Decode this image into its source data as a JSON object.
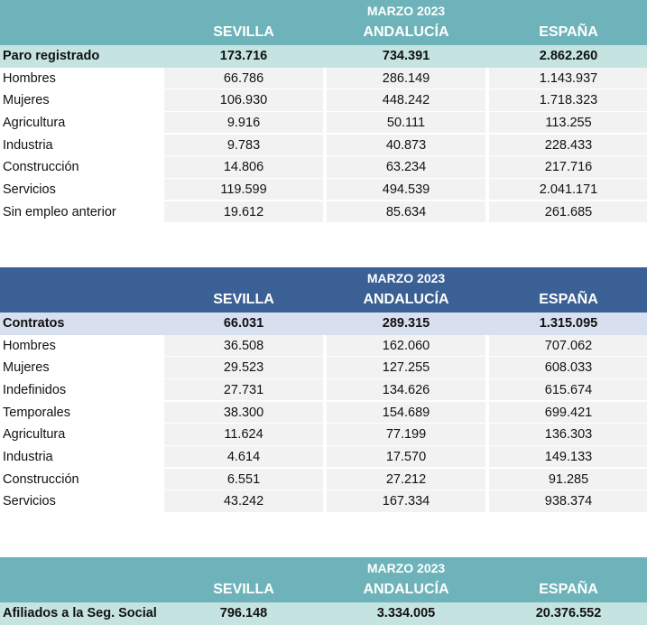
{
  "tables": [
    {
      "period": "MARZO 2023",
      "columns": [
        "SEVILLA",
        "ANDALUCÍA",
        "ESPAÑA"
      ],
      "total": {
        "label": "Paro registrado",
        "values": [
          "173.716",
          "734.391",
          "2.862.260"
        ]
      },
      "rows": [
        {
          "label": "Hombres",
          "values": [
            "66.786",
            "286.149",
            "1.143.937"
          ]
        },
        {
          "label": "Mujeres",
          "values": [
            "106.930",
            "448.242",
            "1.718.323"
          ]
        },
        {
          "label": "Agricultura",
          "values": [
            "9.916",
            "50.111",
            "113.255"
          ]
        },
        {
          "label": "Industria",
          "values": [
            "9.783",
            "40.873",
            "228.433"
          ]
        },
        {
          "label": "Construcción",
          "values": [
            "14.806",
            "63.234",
            "217.716"
          ]
        },
        {
          "label": "Servicios",
          "values": [
            "119.599",
            "494.539",
            "2.041.171"
          ]
        },
        {
          "label": "Sin empleo anterior",
          "values": [
            "19.612",
            "85.634",
            "261.685"
          ]
        }
      ]
    },
    {
      "period": "MARZO 2023",
      "columns": [
        "SEVILLA",
        "ANDALUCÍA",
        "ESPAÑA"
      ],
      "total": {
        "label": "Contratos",
        "values": [
          "66.031",
          "289.315",
          "1.315.095"
        ]
      },
      "rows": [
        {
          "label": "Hombres",
          "values": [
            "36.508",
            "162.060",
            "707.062"
          ]
        },
        {
          "label": "Mujeres",
          "values": [
            "29.523",
            "127.255",
            "608.033"
          ]
        },
        {
          "label": "Indefinidos",
          "values": [
            "27.731",
            "134.626",
            "615.674"
          ]
        },
        {
          "label": "Temporales",
          "values": [
            "38.300",
            "154.689",
            "699.421"
          ]
        },
        {
          "label": "Agricultura",
          "values": [
            "11.624",
            "77.199",
            "136.303"
          ]
        },
        {
          "label": "Industria",
          "values": [
            "4.614",
            "17.570",
            "149.133"
          ]
        },
        {
          "label": "Construcción",
          "values": [
            "6.551",
            "27.212",
            "91.285"
          ]
        },
        {
          "label": "Servicios",
          "values": [
            "43.242",
            "167.334",
            "938.374"
          ]
        }
      ]
    },
    {
      "period": "MARZO 2023",
      "columns": [
        "SEVILLA",
        "ANDALUCÍA",
        "ESPAÑA"
      ],
      "total": {
        "label": "Afiliados a la Seg. Social",
        "values": [
          "796.148",
          "3.334.005",
          "20.376.552"
        ]
      },
      "rows": []
    }
  ],
  "colors": {
    "teal_header": "#6db3b9",
    "teal_total": "#c4e3e1",
    "blue_header": "#3a6095",
    "blue_total": "#d8dfee",
    "cell": "#f2f2f2"
  }
}
